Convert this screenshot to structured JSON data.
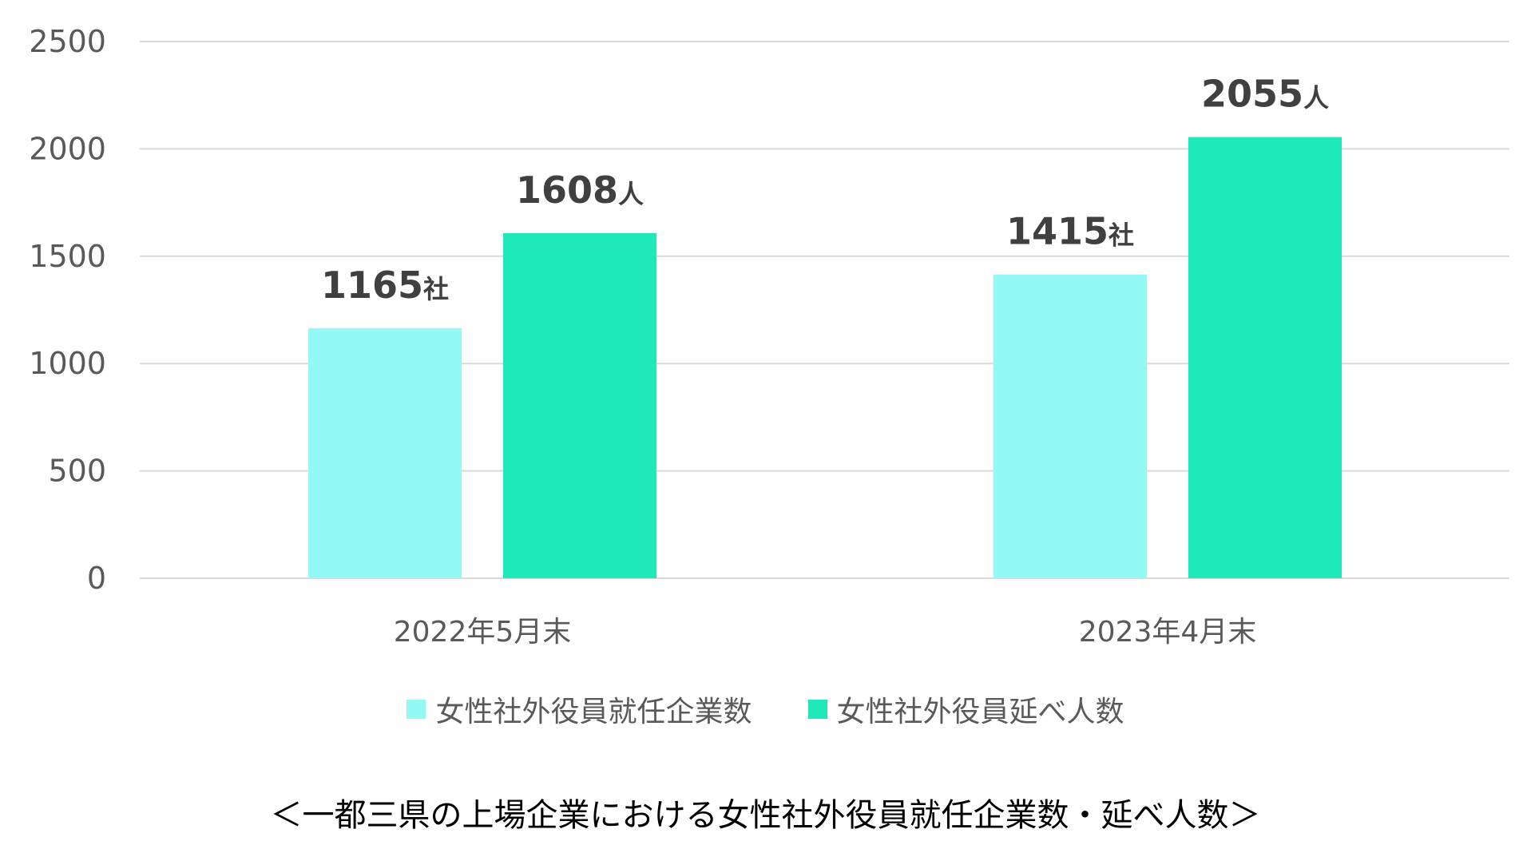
{
  "chart_data": {
    "type": "bar",
    "categories": [
      "2022年5月末",
      "2023年4月末"
    ],
    "series": [
      {
        "name": "女性社外役員就任企業数",
        "values": [
          1165,
          1415
        ],
        "unit": "社",
        "color": "#94f9f4"
      },
      {
        "name": "女性社外役員延べ人数",
        "values": [
          1608,
          2055
        ],
        "unit": "人",
        "color": "#1fe9b9"
      }
    ],
    "ylim": [
      0,
      2500
    ],
    "yticks": [
      0,
      500,
      1000,
      1500,
      2000,
      2500
    ],
    "grid": true,
    "legend_position": "bottom",
    "gridline_color": "#d9d9d9",
    "title": "＜一都三県の上場企業における女性社外役員就任企業数・延べ人数＞"
  }
}
